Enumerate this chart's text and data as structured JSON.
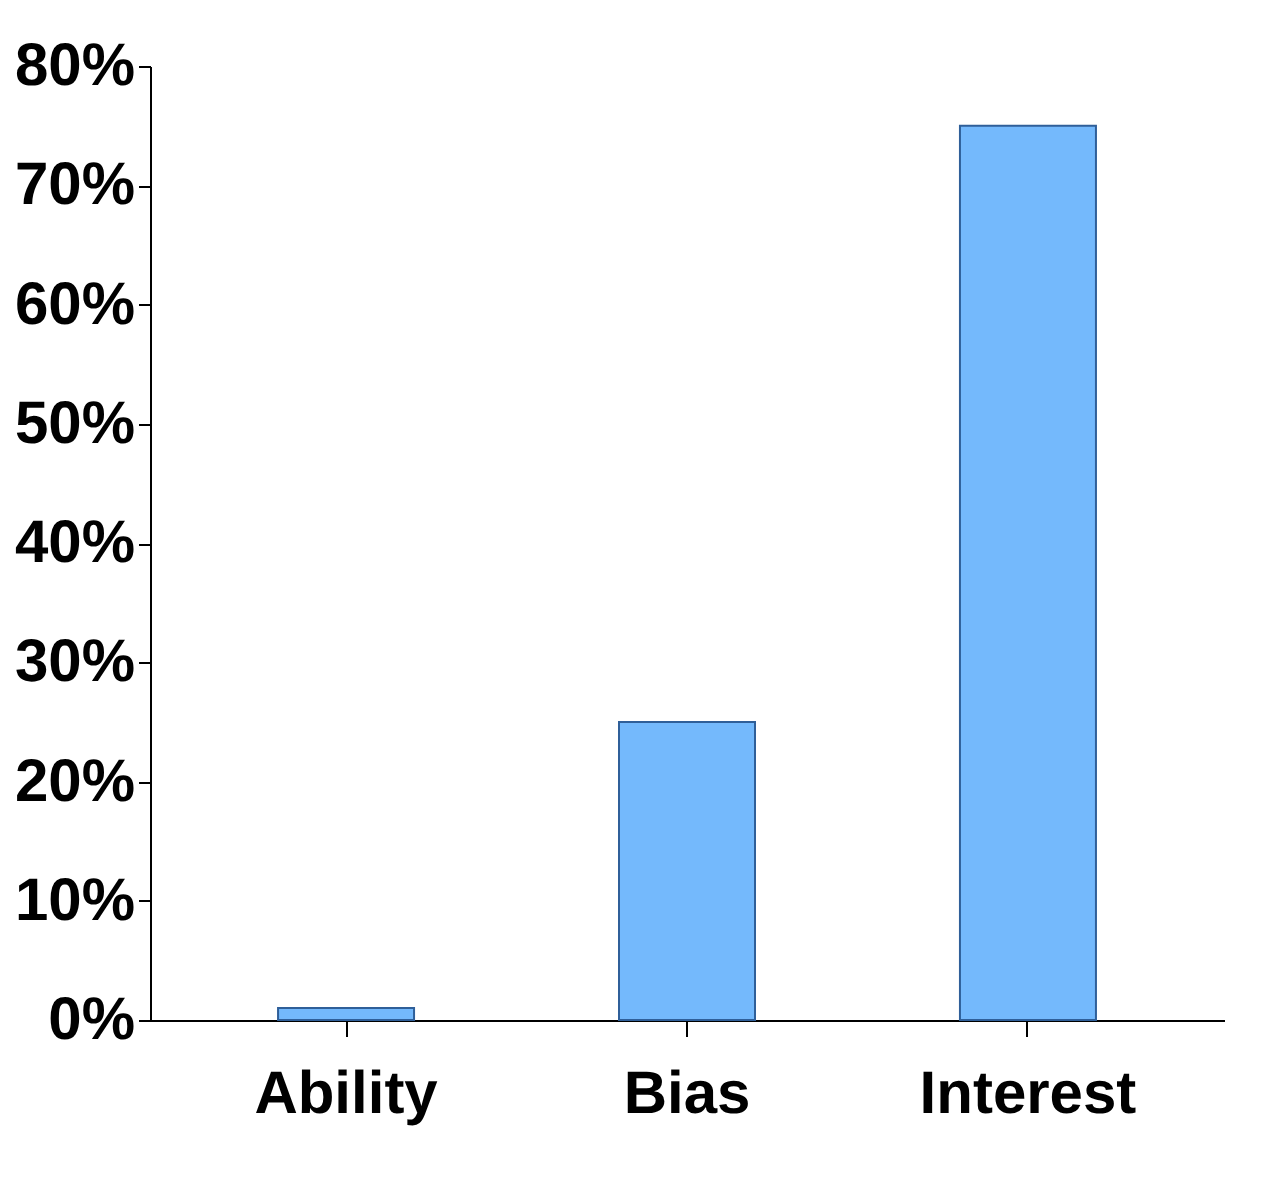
{
  "chart_data": {
    "type": "bar",
    "categories": [
      "Ability",
      "Bias",
      "Interest"
    ],
    "values": [
      1,
      25,
      75
    ],
    "color": "#74b9fc",
    "ylim": [
      0,
      80
    ],
    "yticks": [
      {
        "value": 0,
        "label": "0%"
      },
      {
        "value": 10,
        "label": "10%"
      },
      {
        "value": 20,
        "label": "20%"
      },
      {
        "value": 30,
        "label": "30%"
      },
      {
        "value": 40,
        "label": "40%"
      },
      {
        "value": 50,
        "label": "50%"
      },
      {
        "value": 60,
        "label": "60%"
      },
      {
        "value": 70,
        "label": "70%"
      },
      {
        "value": 80,
        "label": "80%"
      }
    ],
    "grid": false
  }
}
